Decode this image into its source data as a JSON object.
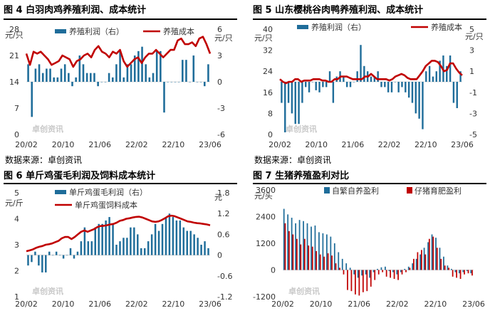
{
  "panels": [
    {
      "title": "图 4  白羽肉鸡养殖利润、成本统计",
      "source": "数据来源：卓创资讯"
    },
    {
      "title": "图 5  山东樱桃谷肉鸭养殖利润、成本统计",
      "source": "数据来源：卓创资讯"
    },
    {
      "title": "图 6  单斤鸡蛋毛利润及饲料成本统计",
      "source": ""
    },
    {
      "title": "图 7  生猪养殖盈利对比",
      "source": ""
    }
  ],
  "watermark": "卓创资讯",
  "colors": {
    "bar": "#1f6d9a",
    "line": "#c00000",
    "bar2": "#c00000"
  },
  "chart_data": [
    {
      "type": "bar+line",
      "left_unit": "元/只",
      "right_unit": "元/只",
      "left_ylim": [
        0,
        28
      ],
      "left_ticks": [
        "0",
        "7",
        "14",
        "21",
        "28"
      ],
      "right_ylim": [
        -6,
        6
      ],
      "right_ticks": [
        "-6",
        "-3",
        "0",
        "3",
        "6"
      ],
      "x_ticks": [
        "20/02",
        "20/10",
        "21/06",
        "22/02",
        "22/10",
        "23/06"
      ],
      "legend": [
        "养殖利润（右）",
        "养殖成本"
      ],
      "bar_values": [
        2,
        -4,
        1.5,
        2,
        1,
        1.5,
        1.5,
        0.5,
        0.5,
        1.5,
        2,
        1,
        -0.5,
        0.5,
        3,
        2,
        1,
        1,
        1,
        -0.5,
        0,
        0,
        1,
        0.5,
        2,
        3.5,
        0.5,
        2,
        2,
        3,
        3.5,
        4,
        2,
        0.5,
        1,
        3.5,
        3.5,
        -3.5,
        0,
        0,
        0,
        0,
        2.5,
        2.5,
        0,
        3,
        0,
        0,
        -0.5,
        2
      ],
      "line_values": [
        21.5,
        18.5,
        22,
        21.5,
        22,
        21,
        20,
        18.5,
        19,
        19.5,
        21,
        20.5,
        20,
        18,
        19.5,
        20,
        21,
        21.5,
        20.5,
        22.5,
        23.5,
        22,
        21.5,
        20.5,
        22,
        21.5,
        22.5,
        19.5,
        18,
        19,
        20,
        20.5,
        19,
        20.5,
        21.5,
        21.5,
        22.5,
        21.5,
        20.5,
        21.5,
        22.5,
        22.5,
        25,
        25.5,
        24,
        24,
        24.5,
        23.5,
        25.5,
        26,
        24,
        21.5
      ]
    },
    {
      "type": "bar+line",
      "left_unit": "元/只",
      "right_unit": "元/只",
      "left_ylim": [
        0,
        40
      ],
      "left_ticks": [
        "0",
        "8",
        "16",
        "24",
        "32",
        "40"
      ],
      "right_ylim": [
        -5,
        5
      ],
      "right_ticks": [
        "-5",
        "-3",
        "-1",
        "1",
        "3",
        "5"
      ],
      "x_ticks": [
        "20/02",
        "20/10",
        "21/06",
        "22/02",
        "22/10",
        "23/06"
      ],
      "legend": [
        "养殖利润（右）",
        "养殖成本"
      ],
      "bar_values": [
        -2,
        -4.8,
        -2,
        -3,
        -4,
        -4,
        -2,
        -0.5,
        -1,
        0,
        -0.8,
        -1,
        -0.5,
        -0.5,
        1,
        -2,
        0.5,
        1,
        0.5,
        -0.5,
        -0.5,
        0,
        1,
        3.5,
        1.5,
        1,
        0.5,
        0.5,
        1,
        -0.5,
        -0.5,
        -1,
        -1,
        0,
        -1,
        -0.5,
        -1,
        -1.5,
        -2,
        -3,
        -3.5,
        -4.5,
        1,
        1.5,
        0.5,
        1,
        2,
        2.5,
        1.5,
        2.5,
        -2,
        -2.5,
        1
      ],
      "line_values": [
        21,
        20,
        19.5,
        20,
        20,
        21,
        21,
        20,
        20.5,
        20.5,
        20.5,
        21,
        21,
        21,
        20.5,
        20.5,
        20,
        20,
        21,
        21,
        22,
        22,
        22,
        21.5,
        21,
        21,
        21,
        21,
        22,
        22,
        23,
        22,
        21,
        21,
        21,
        21,
        20.5,
        21,
        22,
        22.5,
        23,
        22.5,
        21.5,
        21,
        21,
        21,
        22.5,
        24,
        26,
        27,
        28,
        28,
        27.5,
        26,
        24,
        24.5,
        27,
        27,
        25,
        23.5,
        22.5
      ]
    },
    {
      "type": "bar+line",
      "left_unit": "元/斤",
      "right_unit": "元",
      "left_ylim": [
        1,
        5
      ],
      "left_ticks": [
        "1",
        "2",
        "3",
        "4",
        "5"
      ],
      "right_ylim": [
        -1.2,
        1.8
      ],
      "right_ticks": [
        "-1.2",
        "-0.6",
        "0",
        "0.6",
        "1.2",
        "1.8"
      ],
      "x_ticks": [
        "20/02",
        "20/10",
        "21/06",
        "22/02",
        "22/10",
        "23/06"
      ],
      "legend": [
        "单斤鸡蛋毛利润（右）",
        "单斤鸡蛋饲料成本"
      ],
      "bar_values": [
        -0.3,
        -0.2,
        0.1,
        -0.3,
        -0.5,
        -0.5,
        0.1,
        0,
        0.1,
        0,
        -0.1,
        0,
        0.2,
        -0.1,
        0.1,
        0.4,
        0.8,
        0.4,
        0.4,
        0.8,
        0.9,
        0.9,
        1,
        1.1,
        0.9,
        0.3,
        0.4,
        0.5,
        0.5,
        0.8,
        0.8,
        0.6,
        0.2,
        0.2,
        0.4,
        0.6,
        0.9,
        0.7,
        0.9,
        1.1,
        1.2,
        1.1,
        1,
        1,
        0.8,
        0.7,
        0.7,
        0.6,
        0.5,
        0.3,
        0.4,
        0.2
      ],
      "line_values": [
        2.75,
        2.78,
        2.82,
        2.88,
        2.92,
        2.95,
        3,
        3.02,
        3.05,
        3.1,
        3.15,
        3.25,
        3.3,
        3.3,
        3.22,
        3.3,
        3.4,
        3.5,
        3.55,
        3.5,
        3.55,
        3.6,
        3.68,
        3.72,
        3.73,
        3.75,
        3.78,
        3.8,
        3.85,
        3.92,
        3.95,
        4.0,
        4.02,
        4.05,
        4.07,
        4.08,
        4.05,
        4.0,
        3.95,
        3.9,
        3.88,
        3.9,
        3.95,
        4.02,
        4.1,
        4.12,
        4.1,
        4.05,
        4.0,
        3.95,
        3.9,
        3.88,
        3.85,
        3.83,
        3.82,
        3.8,
        3.78,
        3.75
      ]
    },
    {
      "type": "bar",
      "left_unit": "元/头",
      "left_ylim": [
        -1200,
        3600
      ],
      "left_ticks": [
        "-1200",
        "0",
        "1200",
        "2400",
        "3600"
      ],
      "x_ticks": [
        "20/02",
        "20/10",
        "21/06",
        "22/02",
        "22/10",
        "23/06"
      ],
      "legend": [
        "自繁自养盈利",
        "仔猪育肥盈利"
      ],
      "series": [
        {
          "name": "自繁自养盈利",
          "values": [
            2750,
            2500,
            2350,
            2100,
            2250,
            2200,
            2100,
            1950,
            2000,
            1700,
            1650,
            1600,
            1500,
            1200,
            800,
            500,
            300,
            100,
            -200,
            -350,
            -250,
            -200,
            -350,
            -100,
            50,
            120,
            150,
            -50,
            -100,
            -200,
            -100,
            50,
            150,
            300,
            500,
            700,
            1000,
            1250,
            1600,
            1450,
            1000,
            600,
            200,
            50,
            -100,
            -150,
            -100,
            -50,
            -150
          ]
        },
        {
          "name": "仔猪育肥盈利",
          "values": [
            2100,
            1750,
            1600,
            1400,
            1150,
            1400,
            1100,
            1050,
            850,
            700,
            600,
            750,
            650,
            300,
            100,
            -200,
            -900,
            -950,
            -1100,
            -1150,
            -1000,
            -950,
            -750,
            -450,
            -200,
            -100,
            -300,
            -350,
            -400,
            -450,
            -200,
            -100,
            100,
            500,
            800,
            900,
            700,
            1400,
            1500,
            1000,
            500,
            200,
            100,
            -300,
            -350,
            -400,
            -200,
            -150,
            -250
          ]
        }
      ]
    }
  ]
}
